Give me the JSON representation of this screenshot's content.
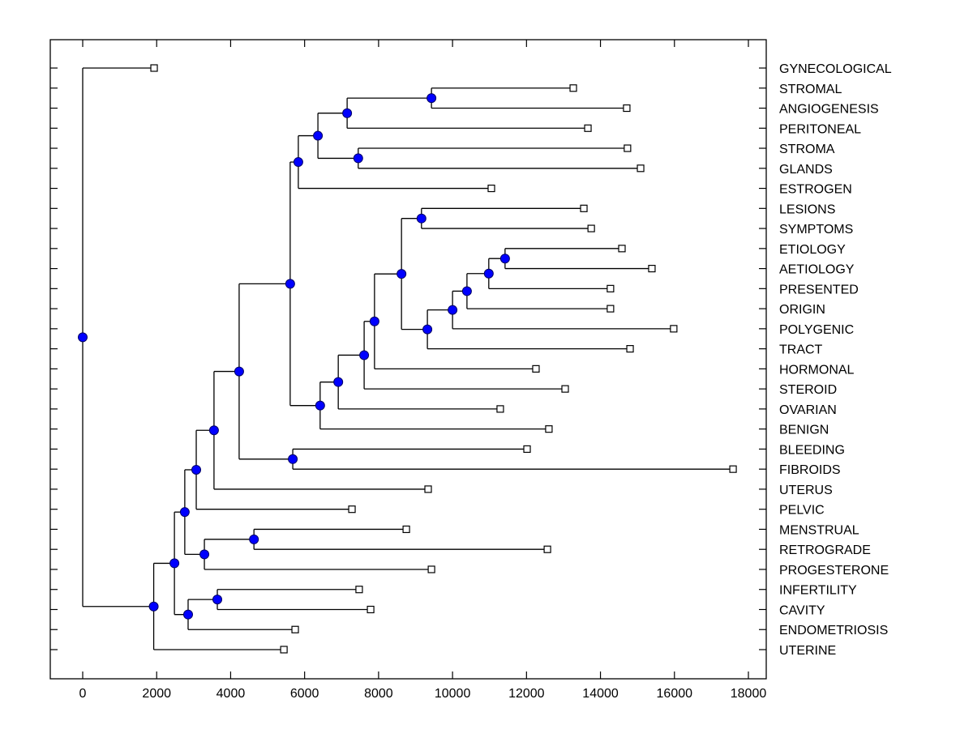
{
  "chart_data": {
    "type": "dendrogram",
    "title": "",
    "xlabel": "",
    "ylabel": "",
    "xlim": [
      -880,
      18480
    ],
    "xticks": [
      0,
      2000,
      4000,
      6000,
      8000,
      10000,
      12000,
      14000,
      16000,
      18000
    ],
    "xtick_labels": [
      "0",
      "2000",
      "4000",
      "6000",
      "8000",
      "10000",
      "12000",
      "14000",
      "16000",
      "18000"
    ],
    "grid": false,
    "leaf_order": [
      "GYNECOLOGICAL",
      "STROMAL",
      "ANGIOGENESIS",
      "PERITONEAL",
      "STROMA",
      "GLANDS",
      "ESTROGEN",
      "LESIONS",
      "SYMPTOMS",
      "ETIOLOGY",
      "AETIOLOGY",
      "PRESENTED",
      "ORIGIN",
      "POLYGENIC",
      "TRACT",
      "HORMONAL",
      "STEROID",
      "OVARIAN",
      "BENIGN",
      "BLEEDING",
      "FIBROIDS",
      "UTERUS",
      "PELVIC",
      "MENSTRUAL",
      "RETROGRADE",
      "PROGESTERONE",
      "INFERTILITY",
      "CAVITY",
      "ENDOMETRIOSIS",
      "UTERINE"
    ],
    "leaves": {
      "GYNECOLOGICAL": 1930,
      "STROMAL": 13265,
      "ANGIOGENESIS": 14710,
      "PERITONEAL": 13660,
      "STROMA": 14730,
      "GLANDS": 15085,
      "ESTROGEN": 11050,
      "LESIONS": 13550,
      "SYMPTOMS": 13750,
      "ETIOLOGY": 14580,
      "AETIOLOGY": 15390,
      "PRESENTED": 14270,
      "ORIGIN": 14270,
      "POLYGENIC": 15980,
      "TRACT": 14800,
      "HORMONAL": 12255,
      "STEROID": 13045,
      "OVARIAN": 11290,
      "BENIGN": 12605,
      "BLEEDING": 12015,
      "FIBROIDS": 17585,
      "UTERUS": 9340,
      "PELVIC": 7280,
      "MENSTRUAL": 8750,
      "RETROGRADE": 12565,
      "PROGESTERONE": 9430,
      "INFERTILITY": 7475,
      "CAVITY": 7785,
      "ENDOMETRIOSIS": 5745,
      "UTERINE": 5440
    },
    "tree": {
      "x": 0,
      "children": [
        "GYNECOLOGICAL",
        {
          "x": 1920,
          "children": [
            {
              "x": 2480,
              "children": [
                {
                  "x": 2760,
                  "children": [
                    {
                      "x": 3070,
                      "children": [
                        {
                          "x": 3550,
                          "children": [
                            {
                              "x": 4230,
                              "children": [
                                {
                                  "x": 5610,
                                  "children": [
                                    {
                                      "x": 5830,
                                      "children": [
                                        {
                                          "x": 6360,
                                          "children": [
                                            {
                                              "x": 7150,
                                              "children": [
                                                {
                                                  "x": 9430,
                                                  "children": [
                                                    "STROMAL",
                                                    "ANGIOGENESIS"
                                                  ]
                                                },
                                                "PERITONEAL"
                                              ]
                                            },
                                            {
                                              "x": 7450,
                                              "children": [
                                                "STROMA",
                                                "GLANDS"
                                              ]
                                            }
                                          ]
                                        },
                                        "ESTROGEN"
                                      ]
                                    },
                                    {
                                      "x": 6420,
                                      "children": [
                                        {
                                          "x": 6910,
                                          "children": [
                                            {
                                              "x": 7610,
                                              "children": [
                                                {
                                                  "x": 7890,
                                                  "children": [
                                                    {
                                                      "x": 8620,
                                                      "children": [
                                                        {
                                                          "x": 9160,
                                                          "children": [
                                                            "LESIONS",
                                                            "SYMPTOMS"
                                                          ]
                                                        },
                                                        {
                                                          "x": 9320,
                                                          "children": [
                                                            {
                                                              "x": 10000,
                                                              "children": [
                                                                {
                                                                  "x": 10390,
                                                                  "children": [
                                                                    {
                                                                      "x": 10980,
                                                                      "children": [
                                                                        {
                                                                          "x": 11420,
                                                                          "children": [
                                                                            "ETIOLOGY",
                                                                            "AETIOLOGY"
                                                                          ]
                                                                        },
                                                                        "PRESENTED"
                                                                      ]
                                                                    },
                                                                    "ORIGIN"
                                                                  ]
                                                                },
                                                                "POLYGENIC"
                                                              ]
                                                            },
                                                            "TRACT"
                                                          ]
                                                        }
                                                      ]
                                                    },
                                                    "HORMONAL"
                                                  ]
                                                },
                                                "STEROID"
                                              ]
                                            },
                                            "OVARIAN"
                                          ]
                                        },
                                        "BENIGN"
                                      ]
                                    }
                                  ]
                                },
                                {
                                  "x": 5680,
                                  "children": [
                                    "BLEEDING",
                                    "FIBROIDS"
                                  ]
                                }
                              ]
                            },
                            "UTERUS"
                          ]
                        },
                        "PELVIC"
                      ]
                    },
                    {
                      "x": 3290,
                      "children": [
                        {
                          "x": 4630,
                          "children": [
                            "MENSTRUAL",
                            "RETROGRADE"
                          ]
                        },
                        "PROGESTERONE"
                      ]
                    }
                  ]
                },
                {
                  "x": 2850,
                  "children": [
                    {
                      "x": 3640,
                      "children": [
                        "INFERTILITY",
                        "CAVITY"
                      ]
                    },
                    "ENDOMETRIOSIS"
                  ]
                }
              ]
            },
            "UTERINE"
          ]
        }
      ]
    },
    "colors": {
      "node_fill": "#0000ff",
      "node_stroke": "#000066",
      "leaf_fill": "#ffffff",
      "line": "#000000"
    }
  }
}
